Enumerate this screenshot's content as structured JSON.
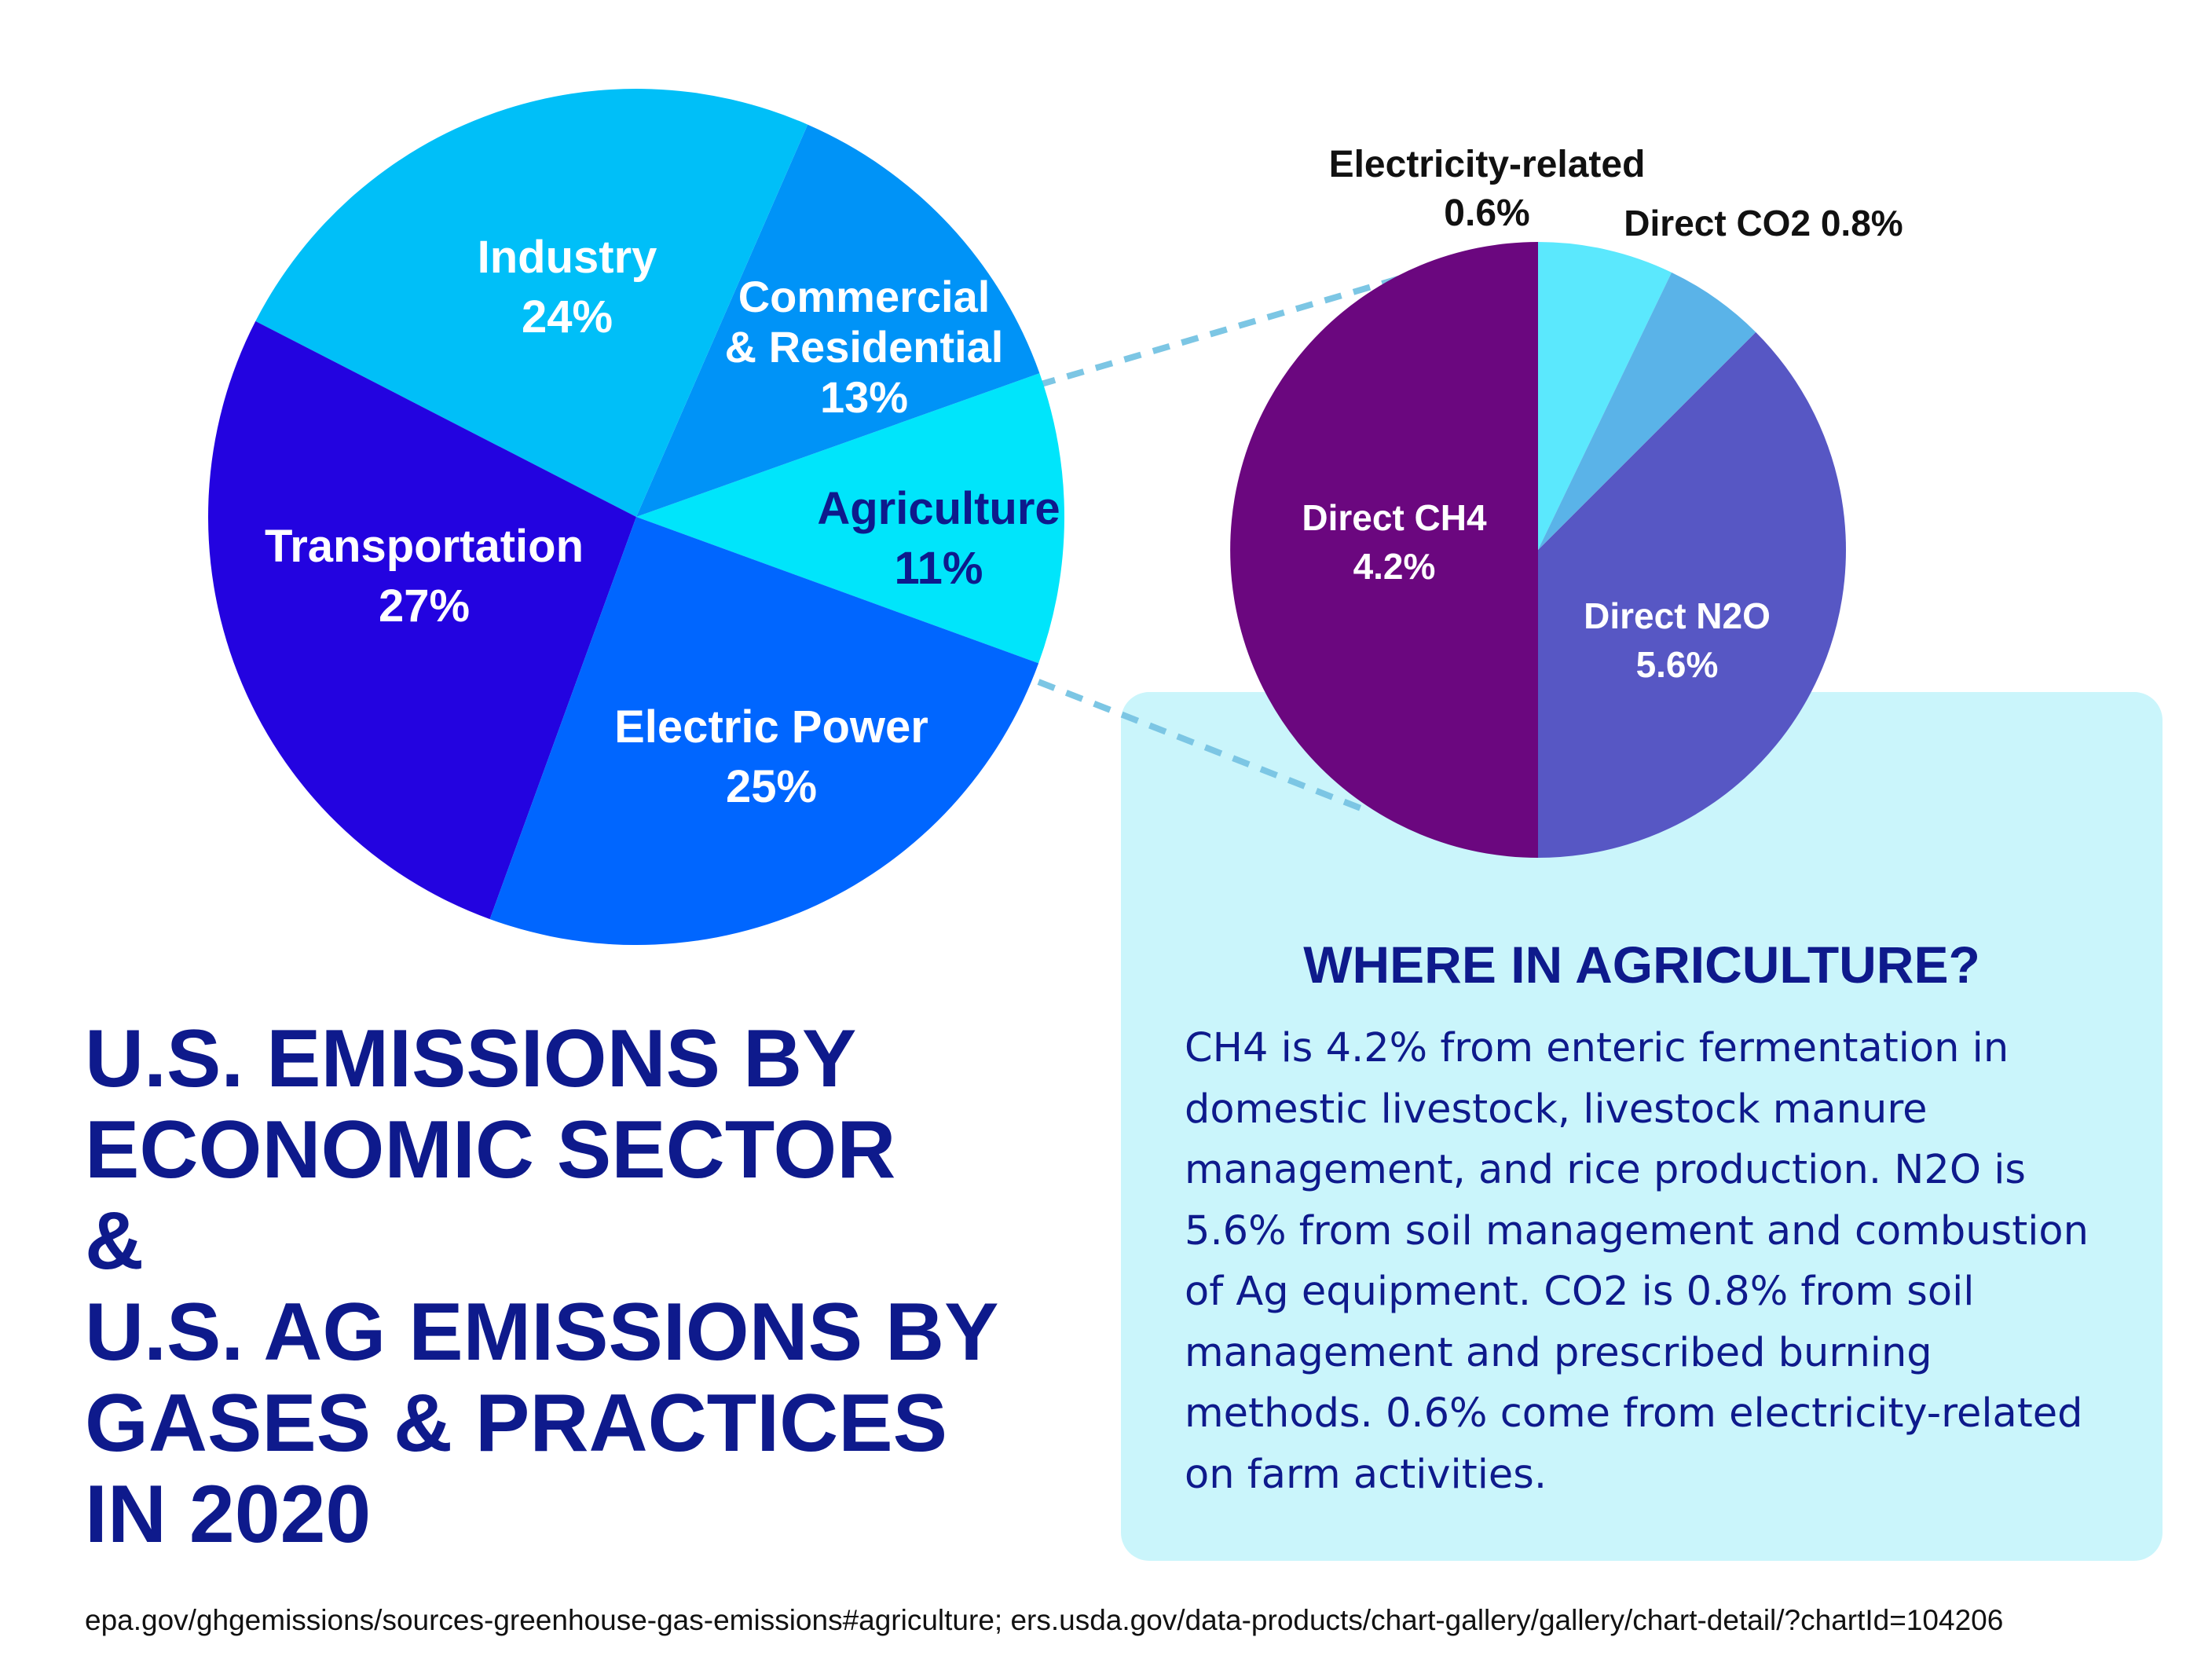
{
  "title_lines": [
    "U.S. EMISSIONS BY",
    "ECONOMIC SECTOR",
    "&",
    "U.S. AG EMISSIONS BY",
    "GASES & PRACTICES",
    "IN 2020"
  ],
  "info": {
    "heading": "WHERE IN AGRICULTURE?",
    "body": "CH4 is 4.2% from enteric fermentation in domestic livestock, livestock manure management, and rice production. N2O is 5.6% from soil management and combustion of Ag equipment. CO2 is 0.8% from soil management and prescribed burning methods. 0.6% come from electricity-related on farm activities."
  },
  "source": "epa.gov/ghgemissions/sources-greenhouse-gas-emissions#agriculture; ers.usda.gov/data-products/chart-gallery/gallery/chart-detail/?chartId=104206",
  "colors": {
    "title": "#0e1a8c",
    "info_bg": "#caf5fb",
    "connector": "#7cc6e4"
  },
  "chart_data": [
    {
      "type": "pie",
      "slices": [
        {
          "name": "Agriculture",
          "value": 11,
          "label": "11%",
          "color": "#00e5fb",
          "text_color": "#0e1a8c"
        },
        {
          "name": "Commercial & Residential",
          "value": 13,
          "label": "13%",
          "color": "#0093f7",
          "text_color": "#ffffff"
        },
        {
          "name": "Industry",
          "value": 24,
          "label": "24%",
          "color": "#00bff8",
          "text_color": "#ffffff"
        },
        {
          "name": "Transportation",
          "value": 27,
          "label": "27%",
          "color": "#2303e0",
          "text_color": "#ffffff"
        },
        {
          "name": "Electric Power",
          "value": 25,
          "label": "25%",
          "color": "#0066ff",
          "text_color": "#ffffff"
        }
      ]
    },
    {
      "type": "pie",
      "slices": [
        {
          "name": "Direct CO2",
          "value": 0.8,
          "label": "0.8%",
          "color": "#5be8fd",
          "text_color": "#111111"
        },
        {
          "name": "Direct N2O",
          "value": 5.6,
          "label": "5.6%",
          "color": "#6b077f",
          "text_color": "#ffffff"
        },
        {
          "name": "Direct CH4",
          "value": 4.2,
          "label": "4.2%",
          "color": "#5757c4",
          "text_color": "#ffffff"
        },
        {
          "name": "Electricity-related",
          "value": 0.6,
          "label": "0.6%",
          "color": "#5ab3e8",
          "text_color": "#111111"
        }
      ]
    }
  ]
}
